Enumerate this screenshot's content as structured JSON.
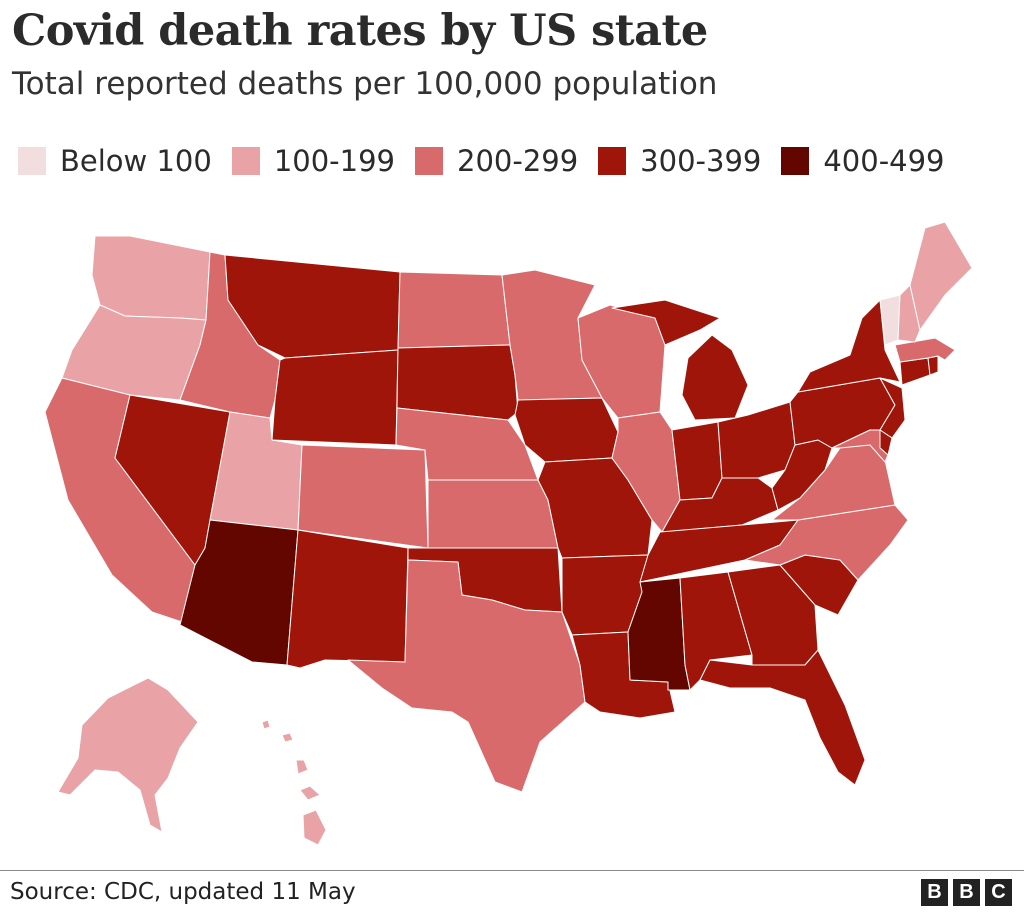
{
  "header": {
    "title": "Covid death rates by US state",
    "subtitle": "Total reported deaths per 100,000 population"
  },
  "legend": [
    {
      "label": "Below 100",
      "color": "#f2dedf"
    },
    {
      "label": "100-199",
      "color": "#e9a2a5"
    },
    {
      "label": "200-299",
      "color": "#d96a6c"
    },
    {
      "label": "300-399",
      "color": "#a01509"
    },
    {
      "label": "400-499",
      "color": "#630600"
    }
  ],
  "states": [
    {
      "name": "Washington",
      "band": "100-199"
    },
    {
      "name": "Oregon",
      "band": "100-199"
    },
    {
      "name": "California",
      "band": "200-299"
    },
    {
      "name": "Nevada",
      "band": "300-399"
    },
    {
      "name": "Idaho",
      "band": "200-299"
    },
    {
      "name": "Montana",
      "band": "300-399"
    },
    {
      "name": "Wyoming",
      "band": "300-399"
    },
    {
      "name": "Utah",
      "band": "100-199"
    },
    {
      "name": "Arizona",
      "band": "400-499"
    },
    {
      "name": "Colorado",
      "band": "200-299"
    },
    {
      "name": "New Mexico",
      "band": "300-399"
    },
    {
      "name": "North Dakota",
      "band": "200-299"
    },
    {
      "name": "South Dakota",
      "band": "300-399"
    },
    {
      "name": "Nebraska",
      "band": "200-299"
    },
    {
      "name": "Kansas",
      "band": "200-299"
    },
    {
      "name": "Oklahoma",
      "band": "300-399"
    },
    {
      "name": "Texas",
      "band": "200-299"
    },
    {
      "name": "Minnesota",
      "band": "200-299"
    },
    {
      "name": "Iowa",
      "band": "300-399"
    },
    {
      "name": "Missouri",
      "band": "300-399"
    },
    {
      "name": "Arkansas",
      "band": "300-399"
    },
    {
      "name": "Louisiana",
      "band": "300-399"
    },
    {
      "name": "Wisconsin",
      "band": "200-299"
    },
    {
      "name": "Illinois",
      "band": "200-299"
    },
    {
      "name": "Michigan",
      "band": "300-399"
    },
    {
      "name": "Indiana",
      "band": "300-399"
    },
    {
      "name": "Ohio",
      "band": "300-399"
    },
    {
      "name": "Kentucky",
      "band": "300-399"
    },
    {
      "name": "Tennessee",
      "band": "300-399"
    },
    {
      "name": "Mississippi",
      "band": "400-499"
    },
    {
      "name": "Alabama",
      "band": "300-399"
    },
    {
      "name": "Georgia",
      "band": "300-399"
    },
    {
      "name": "Florida",
      "band": "300-399"
    },
    {
      "name": "South Carolina",
      "band": "300-399"
    },
    {
      "name": "North Carolina",
      "band": "200-299"
    },
    {
      "name": "Virginia",
      "band": "200-299"
    },
    {
      "name": "West Virginia",
      "band": "300-399"
    },
    {
      "name": "Pennsylvania",
      "band": "300-399"
    },
    {
      "name": "New York",
      "band": "300-399"
    },
    {
      "name": "New Jersey",
      "band": "300-399"
    },
    {
      "name": "Delaware",
      "band": "300-399"
    },
    {
      "name": "Maryland",
      "band": "200-299"
    },
    {
      "name": "Connecticut",
      "band": "300-399"
    },
    {
      "name": "Rhode Island",
      "band": "300-399"
    },
    {
      "name": "Massachusetts",
      "band": "200-299"
    },
    {
      "name": "Vermont",
      "band": "Below 100"
    },
    {
      "name": "New Hampshire",
      "band": "100-199"
    },
    {
      "name": "Maine",
      "band": "100-199"
    },
    {
      "name": "Alaska",
      "band": "100-199"
    },
    {
      "name": "Hawaii",
      "band": "100-199"
    }
  ],
  "footer": {
    "source": "Source: CDC, updated 11 May",
    "logo": [
      "B",
      "B",
      "C"
    ]
  }
}
